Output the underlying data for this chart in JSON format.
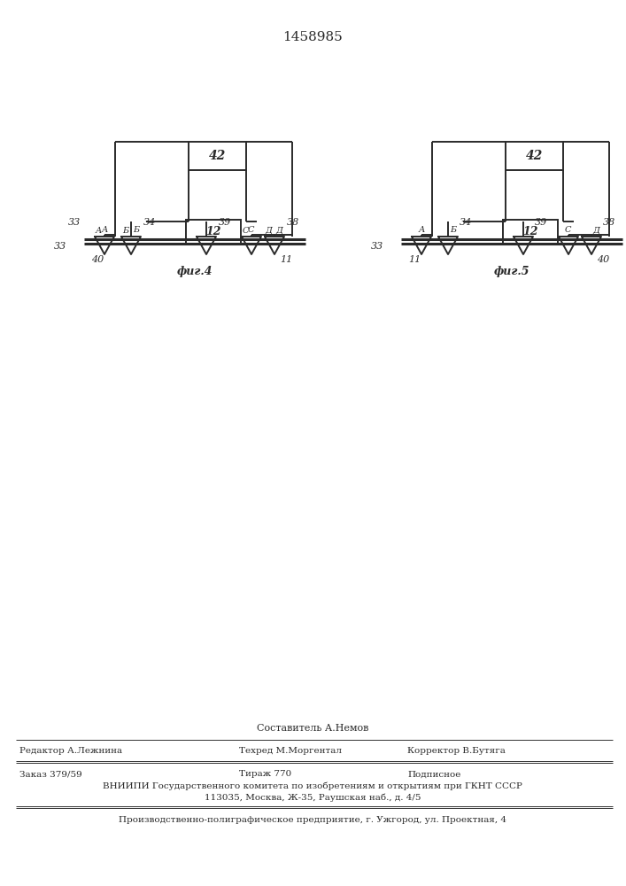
{
  "patent_number": "1458985",
  "bg_color": "#ffffff",
  "line_color": "#2a2a2a",
  "fig4_label": "фиг.4",
  "fig5_label": "фиг.5",
  "box42_label": "42",
  "box12_label": "12",
  "footer_line1_center": "Составитель А.Немов",
  "footer_col1": "Редактор А.Лежнина",
  "footer_col2": "Техред М.Моргентал",
  "footer_col3": "Корректор В.Бутяга",
  "footer_line3": "Заказ 379/59",
  "footer_line3b": "Тираж 770",
  "footer_line3c": "Подписное",
  "footer_line4": "ВНИИПИ Государственного комитета по изобретениям и открытиям при ГКНТ СССР",
  "footer_line5": "113035, Москва, Ж-35, Раушская наб., д. 4/5",
  "footer_line6": "Производственно-полиграфическое предприятие, г. Ужгород, ул. Проектная, 4"
}
